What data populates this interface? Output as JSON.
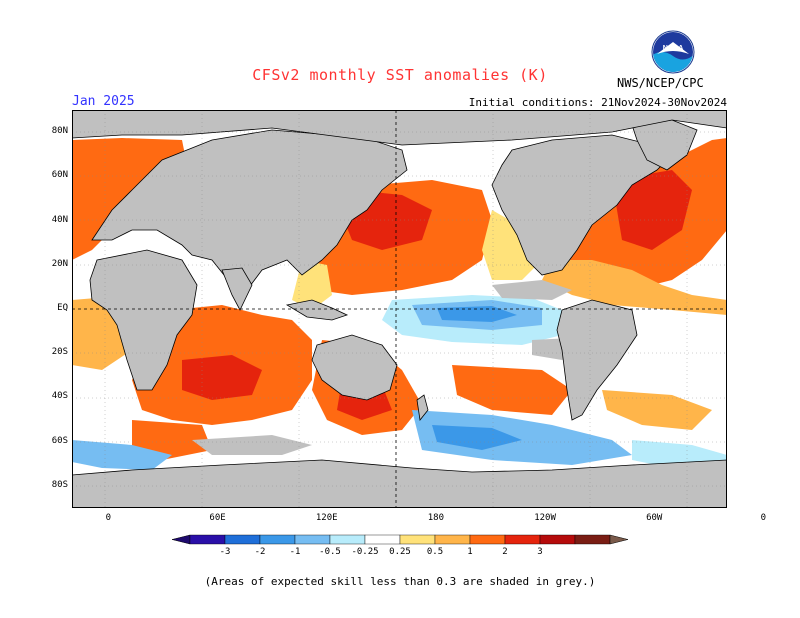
{
  "title": "CFSv2 monthly SST anomalies (K)",
  "month": "Jan 2025",
  "initial_conditions": "Initial conditions: 21Nov2024-30Nov2024",
  "agency": "NWS/NCEP/CPC",
  "logo": "NOAA",
  "footnote": "(Areas of expected skill less than 0.3 are shaded in grey.)",
  "map": {
    "projection": "cylindrical equidistant",
    "lon_range": [
      -20,
      340
    ],
    "lat_range": [
      -90,
      90
    ],
    "lat_labels": [
      "80N",
      "60N",
      "40N",
      "20N",
      "EQ",
      "20S",
      "40S",
      "60S",
      "80S"
    ],
    "lon_labels": [
      "0",
      "60E",
      "120E",
      "180",
      "120W",
      "60W",
      "0"
    ],
    "land_color": "#c0c0c0",
    "grid_lines": "dashed"
  },
  "colorbar": {
    "labels": [
      "-3",
      "-2",
      "-1",
      "-0.5",
      "-0.25",
      "0.25",
      "0.5",
      "1",
      "2",
      "3"
    ],
    "colors": [
      "#2a0fa8",
      "#1f6fd9",
      "#3b98e8",
      "#76bdf2",
      "#b8ecfb",
      "#ffffff",
      "#ffe27a",
      "#ffb54a",
      "#ff6a12",
      "#e5240d",
      "#b50b0b",
      "#7a1d14"
    ],
    "end_colors": [
      "#1e0a6e",
      "#7a5a4a"
    ]
  }
}
